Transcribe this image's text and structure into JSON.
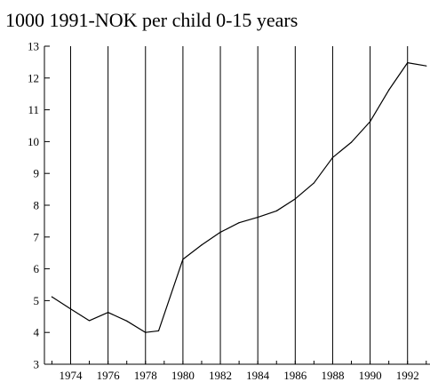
{
  "chart_data": {
    "type": "line",
    "title": "1000 1991-NOK per child 0-15 years",
    "xlabel": "",
    "ylabel": "",
    "xlim": [
      1972.6,
      1993.2
    ],
    "ylim": [
      3,
      13
    ],
    "y_ticks": [
      3,
      4,
      5,
      6,
      7,
      8,
      9,
      10,
      11,
      12,
      13
    ],
    "x_ticks": [
      1974,
      1976,
      1978,
      1980,
      1982,
      1984,
      1986,
      1988,
      1990,
      1992
    ],
    "vertical_lines": [
      1974,
      1976,
      1978,
      1980,
      1982,
      1984,
      1986,
      1988,
      1990,
      1992
    ],
    "grid": "vertical lines only",
    "series": [
      {
        "x": [
          1973,
          1974,
          1975,
          1976,
          1977,
          1978,
          1978.7,
          1980,
          1981,
          1982,
          1983,
          1984,
          1985,
          1986,
          1987,
          1988,
          1989,
          1990,
          1991,
          1992,
          1993
        ],
        "values": [
          5.12,
          4.74,
          4.37,
          4.63,
          4.36,
          4.0,
          4.05,
          6.3,
          6.75,
          7.15,
          7.45,
          7.62,
          7.82,
          8.2,
          8.7,
          9.5,
          9.98,
          10.63,
          11.62,
          12.48,
          12.38
        ]
      }
    ]
  }
}
